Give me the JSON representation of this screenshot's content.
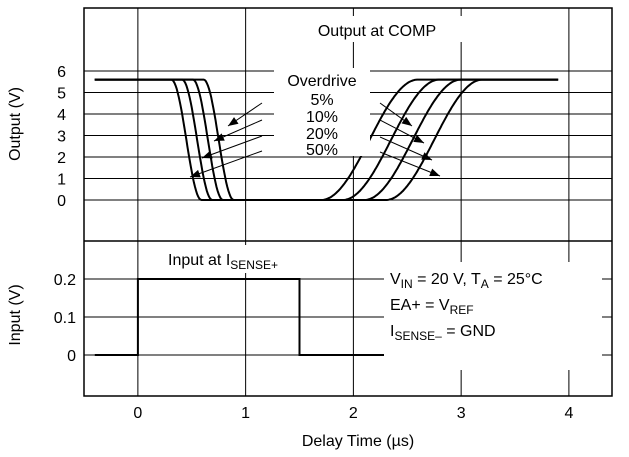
{
  "chart_data": [
    {
      "type": "line",
      "title": "Output at COMP",
      "ylabel": "Output (V)",
      "yticks": [
        "0",
        "1",
        "2",
        "3",
        "4",
        "5",
        "6"
      ],
      "ylim": [
        0,
        6
      ],
      "xlim": [
        -0.5,
        4.4
      ],
      "grid": true,
      "legend_title": "Overdrive",
      "series": [
        {
          "name": "5%",
          "fall_us": 0.75,
          "rise_us": 2.75,
          "high_v": 5.6,
          "low_v": 0
        },
        {
          "name": "10%",
          "fall_us": 0.65,
          "rise_us": 2.55,
          "high_v": 5.6,
          "low_v": 0
        },
        {
          "name": "20%",
          "fall_us": 0.55,
          "rise_us": 2.35,
          "high_v": 5.6,
          "low_v": 0
        },
        {
          "name": "50%",
          "fall_us": 0.45,
          "rise_us": 2.15,
          "high_v": 5.6,
          "low_v": 0
        }
      ]
    },
    {
      "type": "line",
      "title_parts": {
        "main": "Input at I",
        "sub": "SENSE+"
      },
      "ylabel": "Input (V)",
      "yticks": [
        "0",
        "0.1",
        "0.2"
      ],
      "ylim": [
        0,
        0.2
      ],
      "xlabel": "Delay Time (µs)",
      "xticks": [
        "0",
        "1",
        "2",
        "3",
        "4"
      ],
      "xlim": [
        -0.5,
        4.4
      ],
      "grid": true,
      "series": [
        {
          "x": [
            -0.4,
            0,
            0,
            1.5,
            1.5,
            4.1
          ],
          "values": [
            0,
            0,
            0.2,
            0.2,
            0,
            0
          ]
        }
      ],
      "conditions": {
        "line1": {
          "a": "V",
          "a_sub": "IN",
          "b": " = 20 V, T",
          "b_sub": "A",
          "c": " = 25°C"
        },
        "line2": {
          "a": "EA+ = V",
          "a_sub": "REF"
        },
        "line3": {
          "a": "I",
          "a_sub": "SENSE–",
          "b": " = GND"
        }
      }
    }
  ]
}
